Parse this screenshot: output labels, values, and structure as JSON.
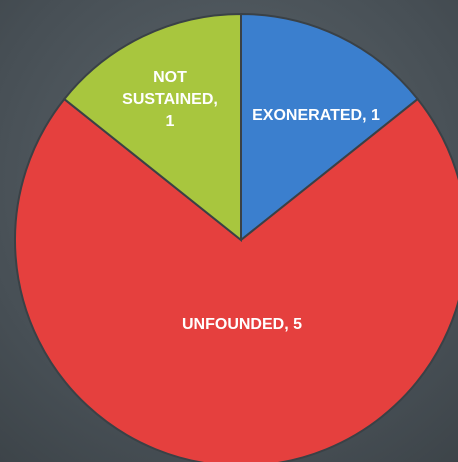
{
  "chart_data": {
    "type": "pie",
    "values": [
      1,
      5,
      1
    ],
    "value_labels": [
      "EXONERATED, 1",
      "UNFOUNDED, 5",
      "NOT SUSTAINED, 1"
    ],
    "colors": [
      "#3b7fce",
      "#e5403e",
      "#a8c63e"
    ]
  }
}
